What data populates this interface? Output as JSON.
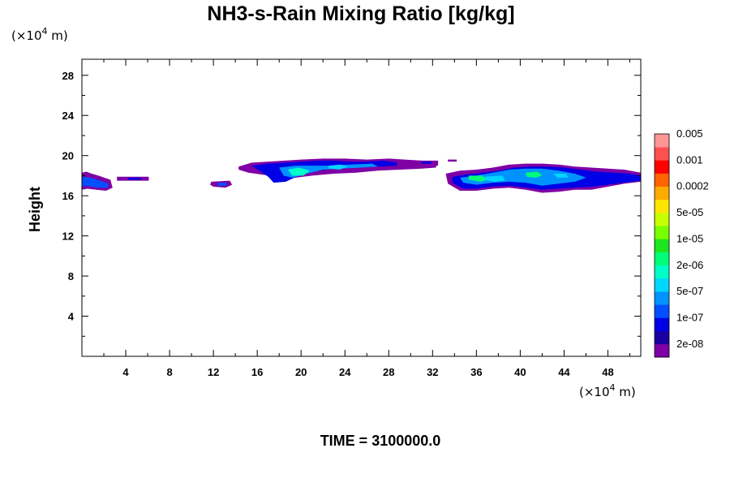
{
  "chart_data": {
    "type": "heatmap",
    "title": "NH3-s-Rain Mixing Ratio [kg/kg]",
    "ylabel": "Height",
    "xlabel": "",
    "x_unit_prefix": "(×10",
    "x_unit_exp": "4",
    "x_unit_suffix": " m)",
    "y_unit_prefix": "(×10",
    "y_unit_exp": "4",
    "y_unit_suffix": " m)",
    "xlim": [
      0,
      51
    ],
    "ylim": [
      0,
      29.6
    ],
    "x_ticks": [
      4,
      8,
      12,
      16,
      20,
      24,
      28,
      32,
      36,
      40,
      44,
      48
    ],
    "y_ticks": [
      4,
      8,
      12,
      16,
      20,
      24,
      28
    ],
    "colorbar": {
      "colors": [
        "#7f00a5",
        "#1a00a0",
        "#0000e6",
        "#0050ff",
        "#0093ff",
        "#00d7ff",
        "#00ffc8",
        "#00ff78",
        "#1ee61e",
        "#78ff00",
        "#c8ff00",
        "#ffe600",
        "#ffaa00",
        "#ff6400",
        "#ff0000",
        "#ff5050",
        "#ff9696"
      ],
      "labels": [
        "2e-08",
        "1e-07",
        "5e-07",
        "2e-06",
        "1e-05",
        "5e-05",
        "0.0002",
        "0.001",
        "0.005"
      ]
    },
    "regions": [
      {
        "x": [
          0.0,
          0.4,
          0.9,
          1.5,
          2.6,
          2.8,
          2.2,
          1.3,
          0.5,
          0.0
        ],
        "y": [
          18.3,
          18.4,
          18.2,
          18.0,
          17.6,
          16.8,
          16.5,
          16.6,
          16.7,
          16.6
        ],
        "level": 0
      },
      {
        "x": [
          0.0,
          0.8,
          1.7,
          2.4,
          2.4,
          1.4,
          0.4,
          0.0
        ],
        "y": [
          17.9,
          17.8,
          17.5,
          17.2,
          16.8,
          16.8,
          17.0,
          16.9
        ],
        "level": 3
      },
      {
        "x": [
          3.2,
          6.1,
          6.1,
          3.2
        ],
        "y": [
          17.9,
          17.9,
          17.5,
          17.5
        ],
        "level": 0
      },
      {
        "x": [
          4.2,
          5.4,
          5.4,
          4.2
        ],
        "y": [
          17.8,
          17.8,
          17.6,
          17.6
        ],
        "level": 2
      },
      {
        "x": [
          11.8,
          13.5,
          13.7,
          13.1,
          12.0,
          11.7
        ],
        "y": [
          17.4,
          17.5,
          17.1,
          16.8,
          16.9,
          17.1
        ],
        "level": 0
      },
      {
        "x": [
          12.4,
          13.2,
          13.2,
          12.4
        ],
        "y": [
          17.3,
          17.3,
          17.0,
          17.0
        ],
        "level": 3
      },
      {
        "x": [
          14.3,
          15.5,
          17.0,
          18.5,
          20.0,
          22.0,
          24.0,
          26.0,
          28.0,
          29.5,
          31.0,
          32.4,
          32.3,
          31.0,
          29.0,
          27.0,
          25.0,
          23.0,
          21.0,
          19.5,
          18.0,
          16.5,
          15.2,
          14.3
        ],
        "y": [
          18.9,
          19.3,
          19.4,
          19.5,
          19.6,
          19.7,
          19.7,
          19.6,
          19.7,
          19.6,
          19.5,
          19.2,
          18.8,
          18.7,
          18.6,
          18.5,
          18.3,
          18.2,
          18.0,
          17.8,
          17.9,
          18.1,
          18.3,
          18.6
        ],
        "level": 0
      },
      {
        "x": [
          15.5,
          17.0,
          18.5,
          20.0,
          21.5,
          23.0,
          24.5,
          26.0,
          27.5,
          28.8,
          28.7,
          27.0,
          25.0,
          23.0,
          21.0,
          19.8,
          18.6,
          17.5,
          17.0,
          16.2
        ],
        "y": [
          19.0,
          19.2,
          19.3,
          19.4,
          19.5,
          19.5,
          19.4,
          19.4,
          19.5,
          19.3,
          19.0,
          18.9,
          18.8,
          18.7,
          18.4,
          18.0,
          17.4,
          17.3,
          17.9,
          18.5
        ],
        "level": 2
      },
      {
        "x": [
          18.0,
          19.5,
          21.0,
          22.5,
          24.5,
          26.5,
          27.0,
          25.5,
          23.5,
          22.0,
          20.5,
          19.2,
          18.4
        ],
        "y": [
          18.8,
          19.0,
          19.0,
          19.0,
          19.1,
          19.2,
          18.9,
          18.8,
          18.7,
          18.6,
          18.2,
          17.8,
          18.0
        ],
        "level": 4
      },
      {
        "x": [
          18.8,
          19.8,
          20.8,
          20.2,
          19.2
        ],
        "y": [
          18.6,
          18.8,
          18.5,
          18.0,
          18.0
        ],
        "level": 6
      },
      {
        "x": [
          22.5,
          23.6,
          24.3,
          23.5,
          22.5
        ],
        "y": [
          19.0,
          19.1,
          18.9,
          18.6,
          18.7
        ],
        "level": 5
      },
      {
        "x": [
          30.6,
          32.5,
          32.5,
          30.6
        ],
        "y": [
          19.5,
          19.5,
          19.0,
          19.0
        ],
        "level": 0
      },
      {
        "x": [
          31.0,
          31.9,
          31.9,
          31.0
        ],
        "y": [
          19.4,
          19.4,
          19.2,
          19.2
        ],
        "level": 2
      },
      {
        "x": [
          33.4,
          34.2,
          34.2,
          33.4
        ],
        "y": [
          19.6,
          19.6,
          19.4,
          19.4
        ],
        "level": 0
      },
      {
        "x": [
          33.2,
          34.5,
          36.0,
          37.5,
          39.0,
          40.5,
          42.0,
          43.5,
          45.0,
          46.5,
          48.0,
          49.5,
          51.0,
          51.0,
          49.5,
          48.0,
          46.5,
          45.0,
          43.5,
          42.0,
          40.5,
          39.0,
          37.5,
          36.0,
          34.5,
          33.4
        ],
        "y": [
          18.2,
          18.5,
          18.6,
          18.8,
          19.1,
          19.2,
          19.2,
          19.1,
          18.9,
          18.8,
          18.7,
          18.6,
          18.3,
          17.4,
          17.2,
          16.9,
          16.6,
          16.6,
          16.4,
          16.3,
          16.6,
          16.8,
          16.7,
          16.5,
          16.5,
          17.2
        ],
        "level": 0
      },
      {
        "x": [
          33.8,
          35.0,
          36.5,
          38.0,
          39.5,
          41.0,
          42.5,
          44.0,
          45.5,
          47.0,
          48.5,
          50.0,
          51.0,
          51.0,
          49.5,
          48.0,
          46.5,
          45.0,
          43.5,
          42.0,
          40.5,
          39.0,
          37.5,
          36.0,
          34.8,
          33.8
        ],
        "y": [
          17.9,
          18.1,
          18.3,
          18.5,
          18.8,
          18.9,
          18.9,
          18.8,
          18.6,
          18.4,
          18.3,
          18.2,
          18.0,
          17.5,
          17.3,
          17.1,
          16.9,
          16.8,
          16.7,
          16.6,
          16.8,
          17.0,
          16.9,
          16.7,
          16.7,
          17.3
        ],
        "level": 2
      },
      {
        "x": [
          34.5,
          36.0,
          37.5,
          39.0,
          40.5,
          42.0,
          43.5,
          45.0,
          46.0,
          45.0,
          43.5,
          42.0,
          40.5,
          39.0,
          37.5,
          36.0,
          34.8
        ],
        "y": [
          17.8,
          18.0,
          18.3,
          18.6,
          18.7,
          18.7,
          18.5,
          18.2,
          17.8,
          17.4,
          17.2,
          17.0,
          17.3,
          17.4,
          17.3,
          17.1,
          17.3
        ],
        "level": 4
      },
      {
        "x": [
          35.3,
          36.5,
          37.0,
          36.4,
          35.3
        ],
        "y": [
          18.0,
          18.0,
          17.6,
          17.4,
          17.6
        ],
        "level": 7
      },
      {
        "x": [
          40.5,
          41.6,
          42.0,
          41.4,
          40.6
        ],
        "y": [
          18.3,
          18.4,
          18.0,
          17.8,
          17.9
        ],
        "level": 7
      },
      {
        "x": [
          36.8,
          38.4,
          38.6,
          37.6,
          36.8
        ],
        "y": [
          17.9,
          18.0,
          17.5,
          17.4,
          17.6
        ],
        "level": 5
      },
      {
        "x": [
          43.0,
          44.2,
          44.4,
          43.4
        ],
        "y": [
          18.2,
          18.2,
          17.8,
          17.8
        ],
        "level": 5
      }
    ]
  },
  "footer": {
    "time_label": "TIME = 3100000.0"
  }
}
